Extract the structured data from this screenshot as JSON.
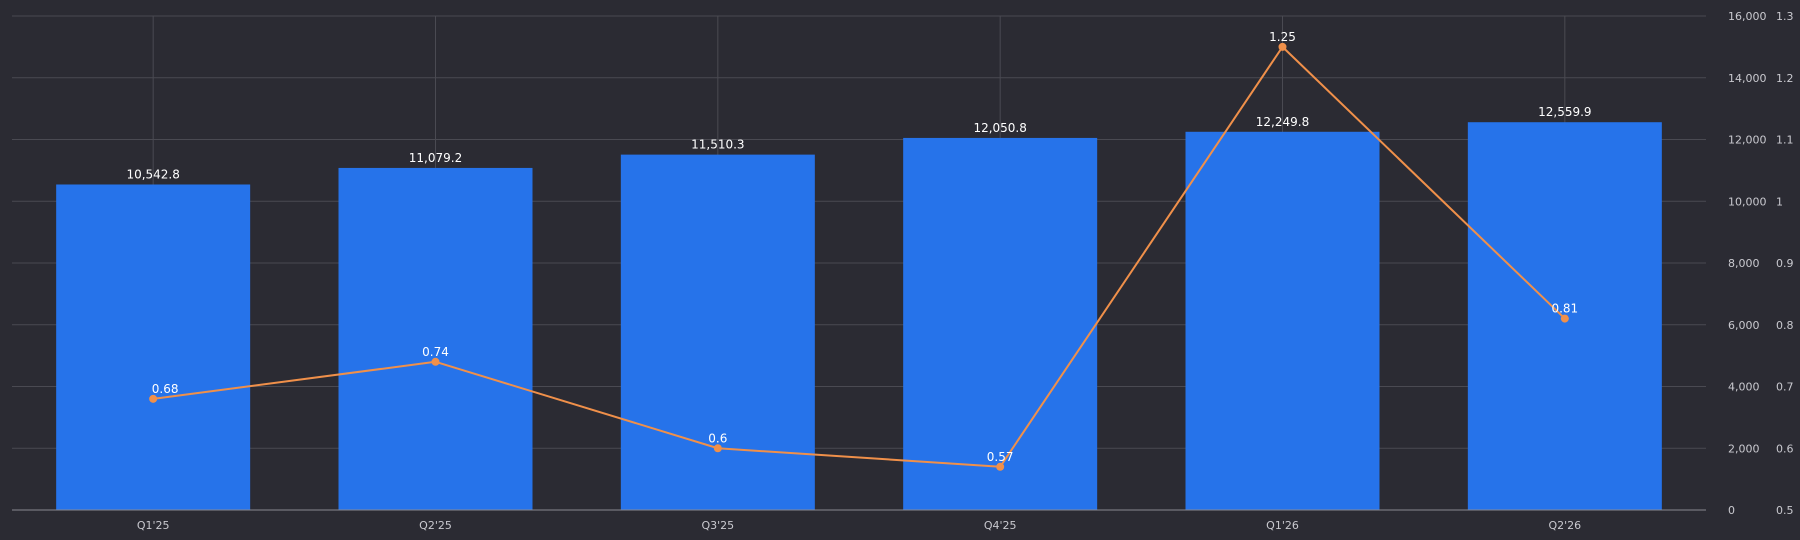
{
  "chart_data": {
    "type": "bar",
    "categories": [
      "Q1'25",
      "Q2'25",
      "Q3'25",
      "Q4'25",
      "Q1'26",
      "Q2'26"
    ],
    "series": [
      {
        "type": "bar",
        "axis": "left",
        "values": [
          10542.8,
          11079.2,
          11510.3,
          12050.8,
          12249.8,
          12559.9
        ],
        "value_labels": [
          "10,542.8",
          "11,079.2",
          "11,510.3",
          "12,050.8",
          "12,249.8",
          "12,559.9"
        ],
        "color": "#2673ea"
      },
      {
        "type": "line",
        "axis": "right",
        "values": [
          0.68,
          0.74,
          0.6,
          0.57,
          1.25,
          0.81
        ],
        "value_labels": [
          "0.68",
          "0.74",
          "0.6",
          "0.57",
          "1.25",
          "0.81"
        ],
        "color": "#f0904a"
      }
    ],
    "ylim_left": [
      0,
      16000
    ],
    "yticks_left": [
      "0",
      "2,000",
      "4,000",
      "6,000",
      "8,000",
      "10,000",
      "12,000",
      "14,000",
      "16,000"
    ],
    "ylim_right": [
      0.5,
      1.3
    ],
    "yticks_right": [
      "0.5",
      "0.6",
      "0.7",
      "0.8",
      "0.9",
      "1",
      "1.1",
      "1.2",
      "1.3"
    ],
    "grid": true,
    "title": "",
    "xlabel": "",
    "ylabel": "",
    "colors": {
      "background": "#2b2b33",
      "grid": "#4a4a52",
      "axis_line": "#8a8a92",
      "tick_text": "#c9c9cf",
      "label_text": "#ffffff"
    }
  }
}
